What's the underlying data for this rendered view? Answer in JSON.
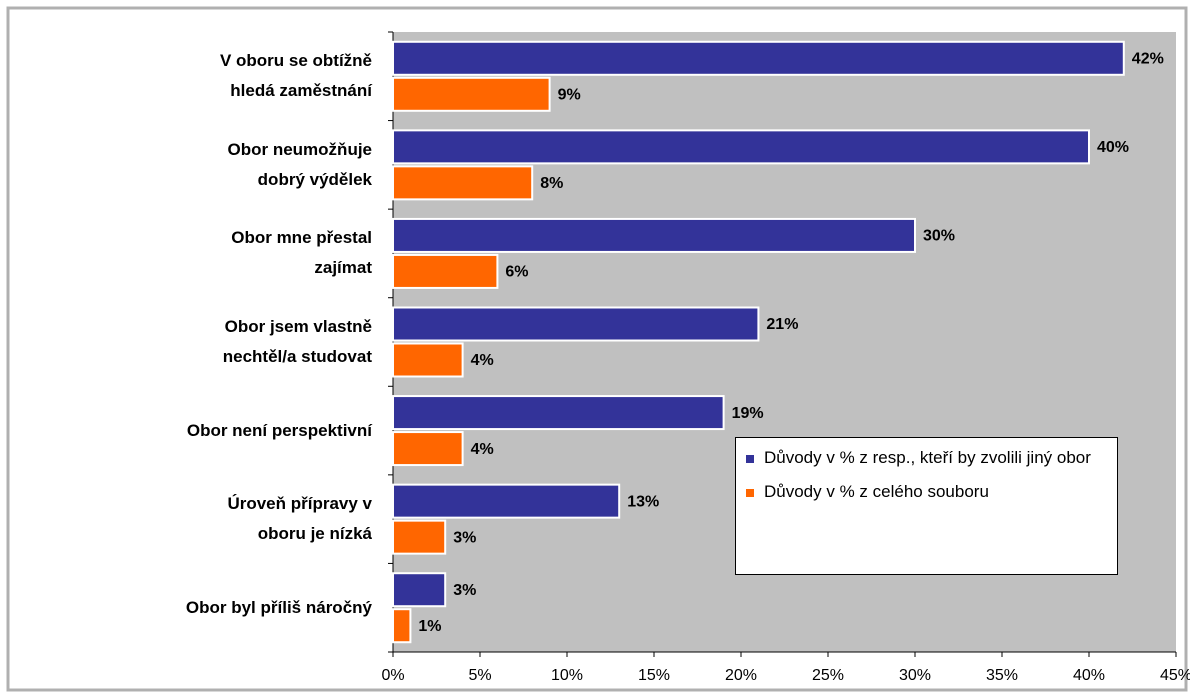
{
  "chart_data": {
    "type": "bar",
    "orientation": "horizontal",
    "categories": [
      "V oboru se obtížně\nhledá zaměstnání",
      "Obor neumožňuje\ndobrý výdělek",
      "Obor mne přestal\nzajímat",
      "Obor  jsem vlastně\nnechtěl/a studovat",
      "Obor není perspektivní",
      "Úroveň přípravy v\noboru je nízká",
      "Obor byl příliš náročný"
    ],
    "series": [
      {
        "name": "Důvody v % z resp., kteří by zvolili jiný obor",
        "color": "#333399",
        "values": [
          42,
          40,
          30,
          21,
          19,
          13,
          3
        ],
        "value_labels": [
          "42%",
          "40%",
          "30%",
          "21%",
          "19%",
          "13%",
          "3%"
        ]
      },
      {
        "name": "Důvody v % z celého souboru",
        "color": "#ff6600",
        "values": [
          9,
          8,
          6,
          4,
          4,
          3,
          1
        ],
        "value_labels": [
          "9%",
          "8%",
          "6%",
          "4%",
          "4%",
          "3%",
          "1%"
        ]
      }
    ],
    "xlim": [
      0,
      45
    ],
    "xticks": [
      {
        "value": 0,
        "label": "0%"
      },
      {
        "value": 5,
        "label": "5%"
      },
      {
        "value": 10,
        "label": "10%"
      },
      {
        "value": 15,
        "label": "15%"
      },
      {
        "value": 20,
        "label": "20%"
      },
      {
        "value": 25,
        "label": "25%"
      },
      {
        "value": 30,
        "label": "30%"
      },
      {
        "value": 35,
        "label": "35%"
      },
      {
        "value": 40,
        "label": "40%"
      },
      {
        "value": 45,
        "label": "45%"
      }
    ]
  }
}
